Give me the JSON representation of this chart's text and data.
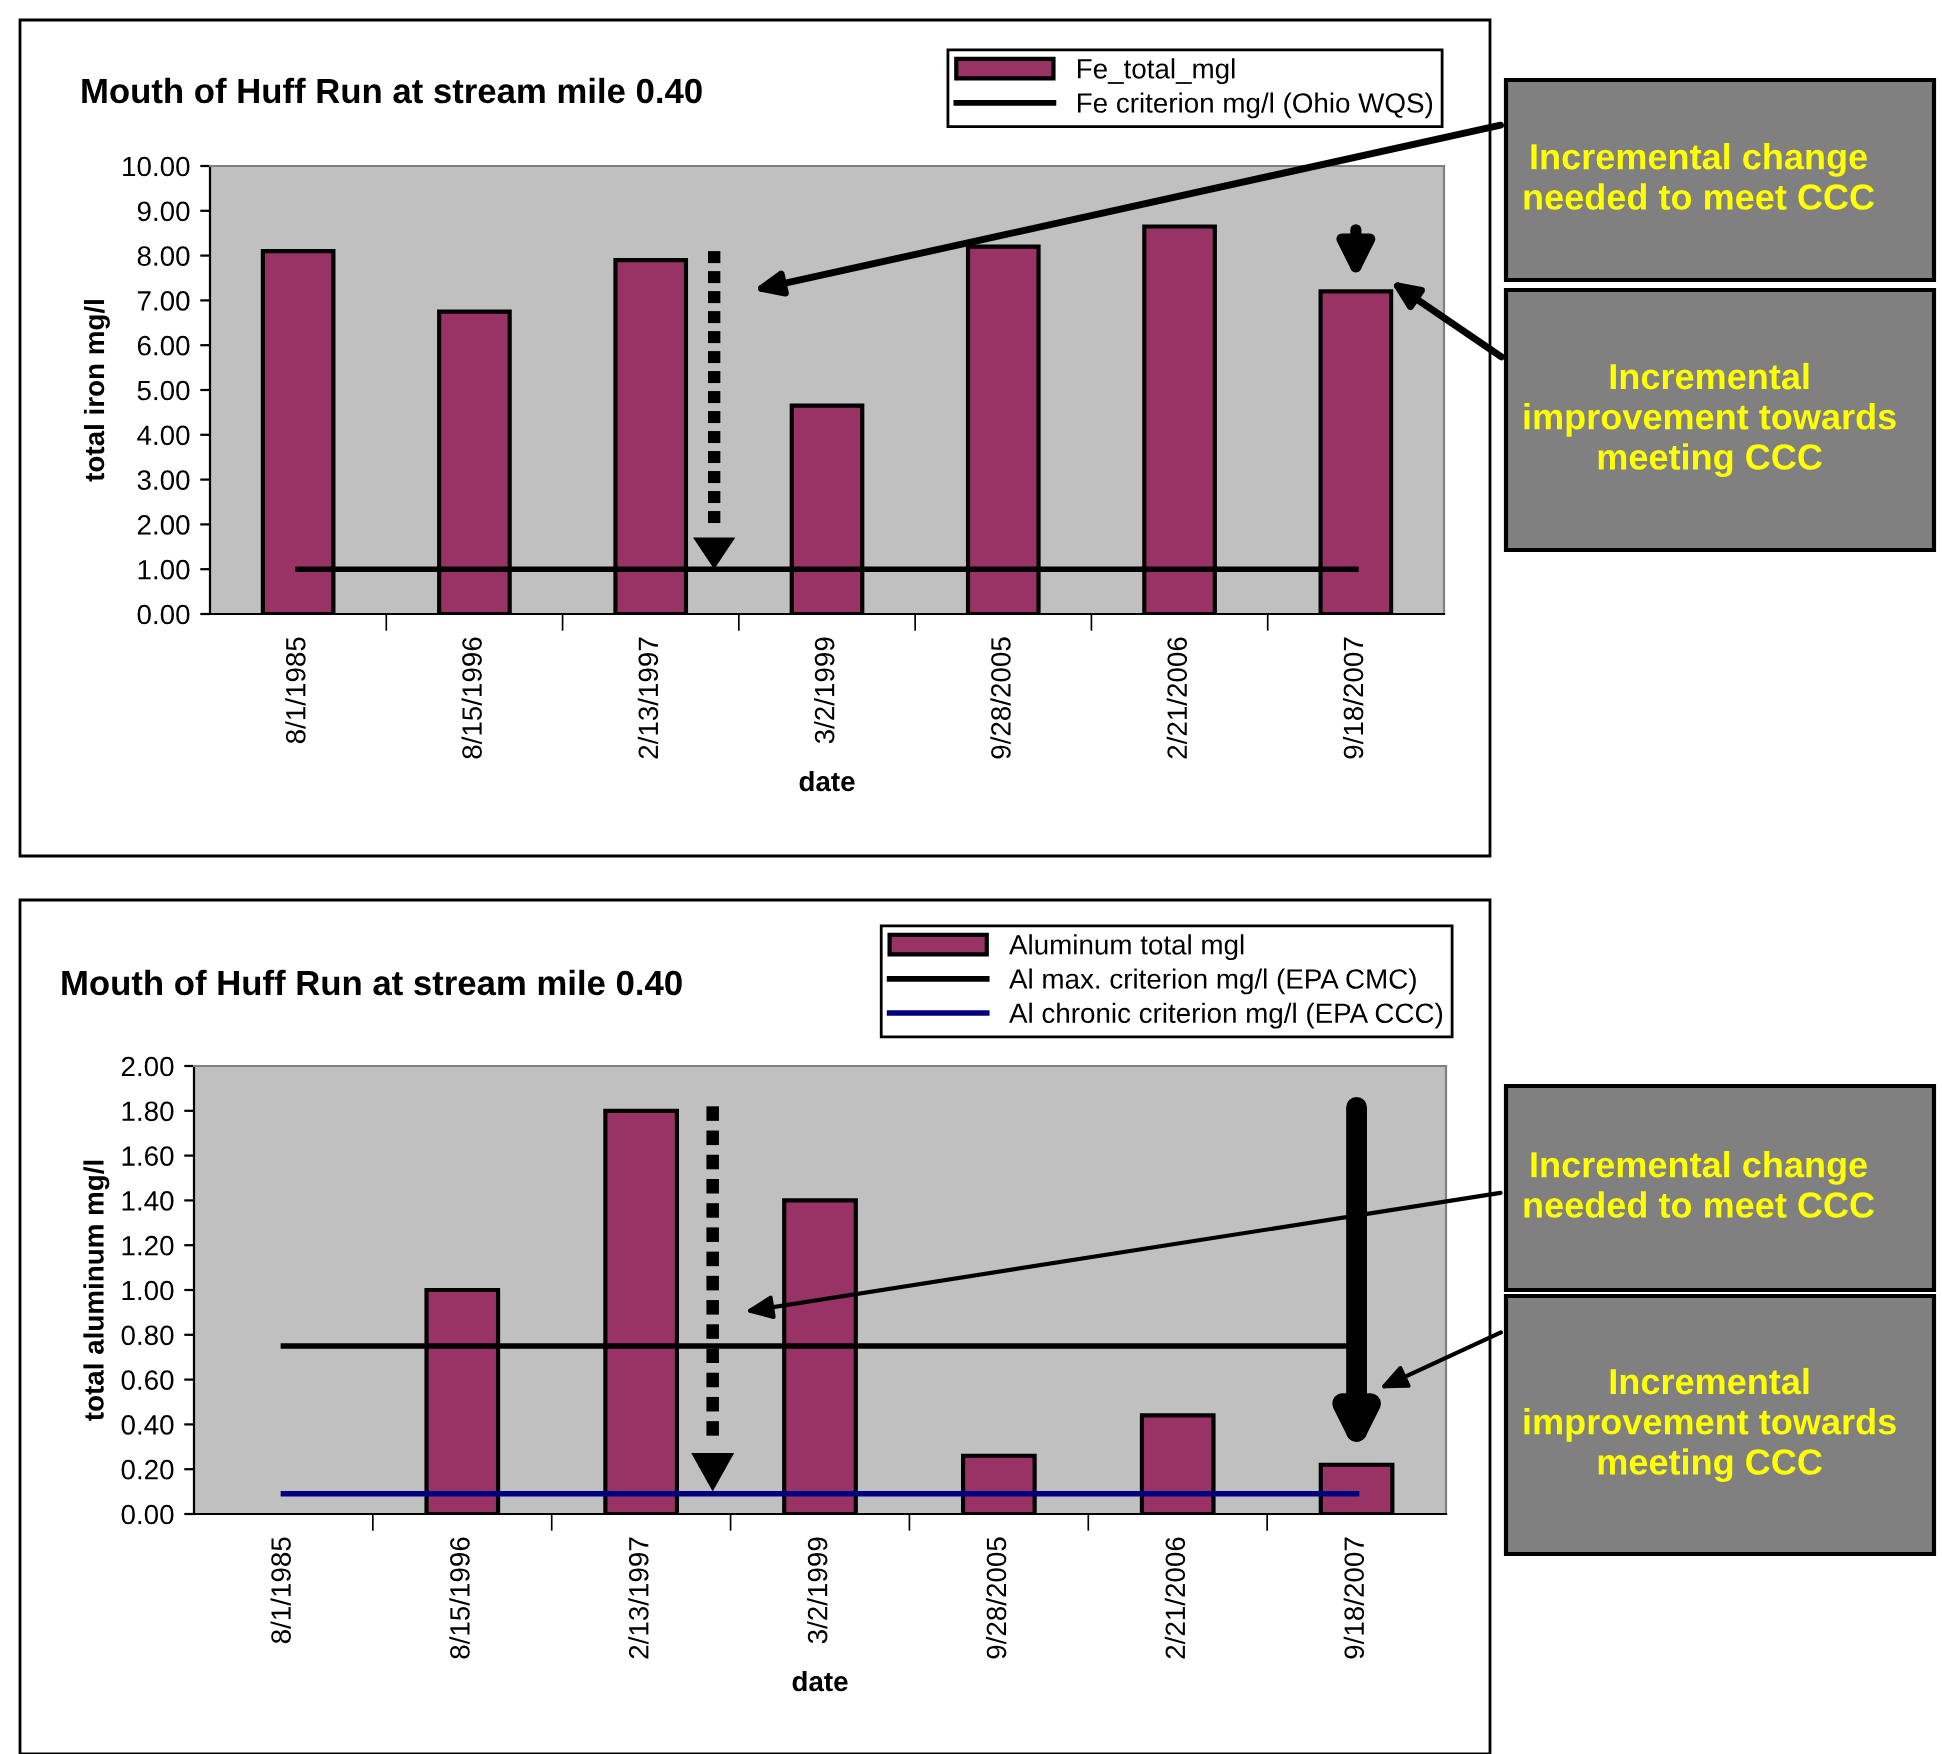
{
  "chart_data": [
    {
      "type": "bar",
      "title": "Mouth of Huff Run at stream mile 0.40",
      "xlabel": "date",
      "ylabel": "total iron mg/l",
      "categories": [
        "8/1/1985",
        "8/15/1996",
        "2/13/1997",
        "3/2/1999",
        "9/28/2005",
        "2/21/2006",
        "9/18/2007"
      ],
      "series": [
        {
          "name": "Fe_total_mgl",
          "color": "#993366",
          "values": [
            8.1,
            6.75,
            7.9,
            4.65,
            8.2,
            8.65,
            7.2
          ]
        },
        {
          "name": "Fe criterion mg/l (Ohio WQS)",
          "type": "line",
          "color": "#000000",
          "values": [
            1.0,
            1.0,
            1.0,
            1.0,
            1.0,
            1.0,
            1.0
          ]
        }
      ],
      "ylim": [
        0,
        10
      ],
      "yticks": [
        {
          "value": 0,
          "label": "0.00"
        },
        {
          "value": 1,
          "label": "1.00"
        },
        {
          "value": 2,
          "label": "2.00"
        },
        {
          "value": 3,
          "label": "3.00"
        },
        {
          "value": 4,
          "label": "4.00"
        },
        {
          "value": 5,
          "label": "5.00"
        },
        {
          "value": 6,
          "label": "6.00"
        },
        {
          "value": 7,
          "label": "7.00"
        },
        {
          "value": 8,
          "label": "8.00"
        },
        {
          "value": 9,
          "label": "9.00"
        },
        {
          "value": 10,
          "label": "10.00"
        }
      ],
      "grid": false,
      "legend": "top right",
      "annotations": [
        "Incremental change needed to meet CCC",
        "Incremental improvement towards meeting CCC"
      ]
    },
    {
      "type": "bar",
      "title": "Mouth of Huff Run at stream mile 0.40",
      "xlabel": "date",
      "ylabel": "total aluminum mg/l",
      "categories": [
        "8/1/1985",
        "8/15/1996",
        "2/13/1997",
        "3/2/1999",
        "9/28/2005",
        "2/21/2006",
        "9/18/2007"
      ],
      "series": [
        {
          "name": "Aluminum total mgl",
          "color": "#993366",
          "values": [
            null,
            1.0,
            1.8,
            1.4,
            0.26,
            0.44,
            0.22
          ]
        },
        {
          "name": "Al max. criterion mg/l (EPA CMC)",
          "type": "line",
          "color": "#000000",
          "values": [
            0.75,
            0.75,
            0.75,
            0.75,
            0.75,
            0.75,
            0.75
          ]
        },
        {
          "name": "Al chronic criterion mg/l (EPA CCC)",
          "type": "line",
          "color": "#000080",
          "values": [
            0.09,
            0.09,
            0.09,
            0.09,
            0.09,
            0.09,
            0.09
          ]
        }
      ],
      "ylim": [
        0,
        2
      ],
      "yticks": [
        {
          "value": 0,
          "label": "0.00"
        },
        {
          "value": 0.2,
          "label": "0.20"
        },
        {
          "value": 0.4,
          "label": "0.40"
        },
        {
          "value": 0.6,
          "label": "0.60"
        },
        {
          "value": 0.8,
          "label": "0.80"
        },
        {
          "value": 1.0,
          "label": "1.00"
        },
        {
          "value": 1.2,
          "label": "1.20"
        },
        {
          "value": 1.4,
          "label": "1.40"
        },
        {
          "value": 1.6,
          "label": "1.60"
        },
        {
          "value": 1.8,
          "label": "1.80"
        },
        {
          "value": 2.0,
          "label": "2.00"
        }
      ],
      "grid": false,
      "legend": "top right",
      "annotations": [
        "Incremental change needed to meet CCC",
        "Incremental improvement towards meeting CCC"
      ]
    }
  ]
}
